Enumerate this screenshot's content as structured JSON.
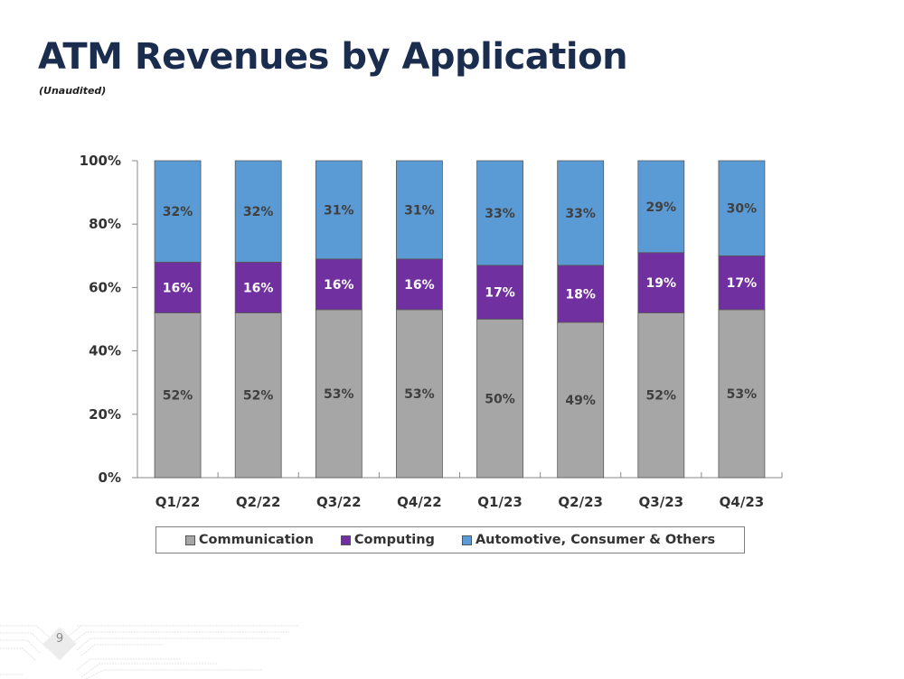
{
  "page": {
    "title": "ATM Revenues by Application",
    "subtitle": "(Unaudited)",
    "page_number": "9"
  },
  "chart_data": {
    "type": "bar",
    "stacked": true,
    "percent_stacked": true,
    "title": "ATM Revenues by Application",
    "xlabel": "",
    "ylabel": "",
    "ylim": [
      0,
      100
    ],
    "yticks": [
      "0%",
      "20%",
      "40%",
      "60%",
      "80%",
      "100%"
    ],
    "ytick_values": [
      0,
      20,
      40,
      60,
      80,
      100
    ],
    "grid": false,
    "legend_position": "bottom",
    "categories": [
      "Q1/22",
      "Q2/22",
      "Q3/22",
      "Q4/22",
      "Q1/23",
      "Q2/23",
      "Q3/23",
      "Q4/23"
    ],
    "series": [
      {
        "name": "Communication",
        "color": "#a6a6a6",
        "label_color": "#404040",
        "values": [
          52,
          52,
          53,
          53,
          50,
          49,
          52,
          53
        ]
      },
      {
        "name": "Computing",
        "color": "#7030a0",
        "label_color": "#ffffff",
        "values": [
          16,
          16,
          16,
          16,
          17,
          18,
          19,
          17
        ]
      },
      {
        "name": "Automotive, Consumer & Others",
        "color": "#5b9bd5",
        "label_color": "#404040",
        "values": [
          32,
          32,
          31,
          31,
          33,
          33,
          29,
          30
        ]
      }
    ]
  }
}
